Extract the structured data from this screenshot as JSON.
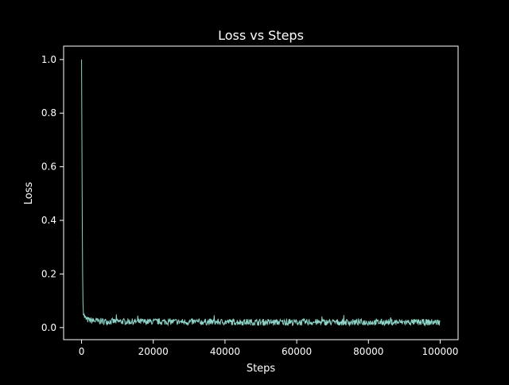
{
  "chart_data": {
    "type": "line",
    "title": "Loss vs Steps",
    "xlabel": "Steps",
    "ylabel": "Loss",
    "xlim": [
      -5000,
      105000
    ],
    "ylim": [
      -0.045,
      1.05
    ],
    "xticks": [
      0,
      20000,
      40000,
      60000,
      80000,
      100000
    ],
    "xtick_labels": [
      "0",
      "20000",
      "40000",
      "60000",
      "80000",
      "100000"
    ],
    "yticks": [
      0.0,
      0.2,
      0.4,
      0.6,
      0.8,
      1.0
    ],
    "ytick_labels": [
      "0.0",
      "0.2",
      "0.4",
      "0.6",
      "0.8",
      "1.0"
    ],
    "grid": false,
    "series": [
      {
        "color": "#8dd3c7",
        "x": [
          0,
          100,
          200,
          300,
          400,
          500,
          700,
          1000,
          1500,
          2000,
          3000,
          4000,
          5000,
          7500,
          10000,
          15000,
          20000,
          25000,
          30000,
          35000,
          40000,
          45000,
          50000,
          55000,
          60000,
          65000,
          70000,
          75000,
          80000,
          85000,
          90000,
          95000,
          100000
        ],
        "y": [
          1.0,
          0.7,
          0.4,
          0.2,
          0.09,
          0.06,
          0.045,
          0.035,
          0.03,
          0.028,
          0.026,
          0.025,
          0.024,
          0.023,
          0.023,
          0.022,
          0.022,
          0.022,
          0.021,
          0.021,
          0.021,
          0.021,
          0.02,
          0.02,
          0.02,
          0.02,
          0.02,
          0.02,
          0.02,
          0.02,
          0.02,
          0.02,
          0.02
        ],
        "noise_band": 0.012
      }
    ]
  }
}
